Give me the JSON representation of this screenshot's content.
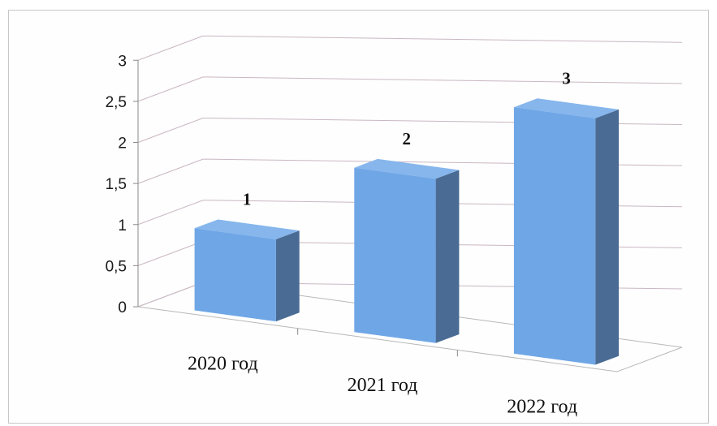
{
  "chart_data": {
    "type": "bar",
    "subtype": "3d-column",
    "categories": [
      "2020 год",
      "2021 год",
      "2022 год"
    ],
    "values": [
      1,
      2,
      3
    ],
    "data_labels": [
      "1",
      "2",
      "3"
    ],
    "ylim": [
      0,
      3
    ],
    "y_ticks": [
      "0",
      "0,5",
      "1",
      "1,5",
      "2",
      "2,5",
      "3"
    ],
    "title": "",
    "xlabel": "",
    "ylabel": "",
    "grid": true,
    "legend": "none",
    "colors": {
      "bar_front": "#6fa6e6",
      "bar_side": "#4a6b94",
      "bar_top": "#86b6ec",
      "gridline": "#c9b7c3",
      "axis": "#8a8a8a"
    }
  }
}
